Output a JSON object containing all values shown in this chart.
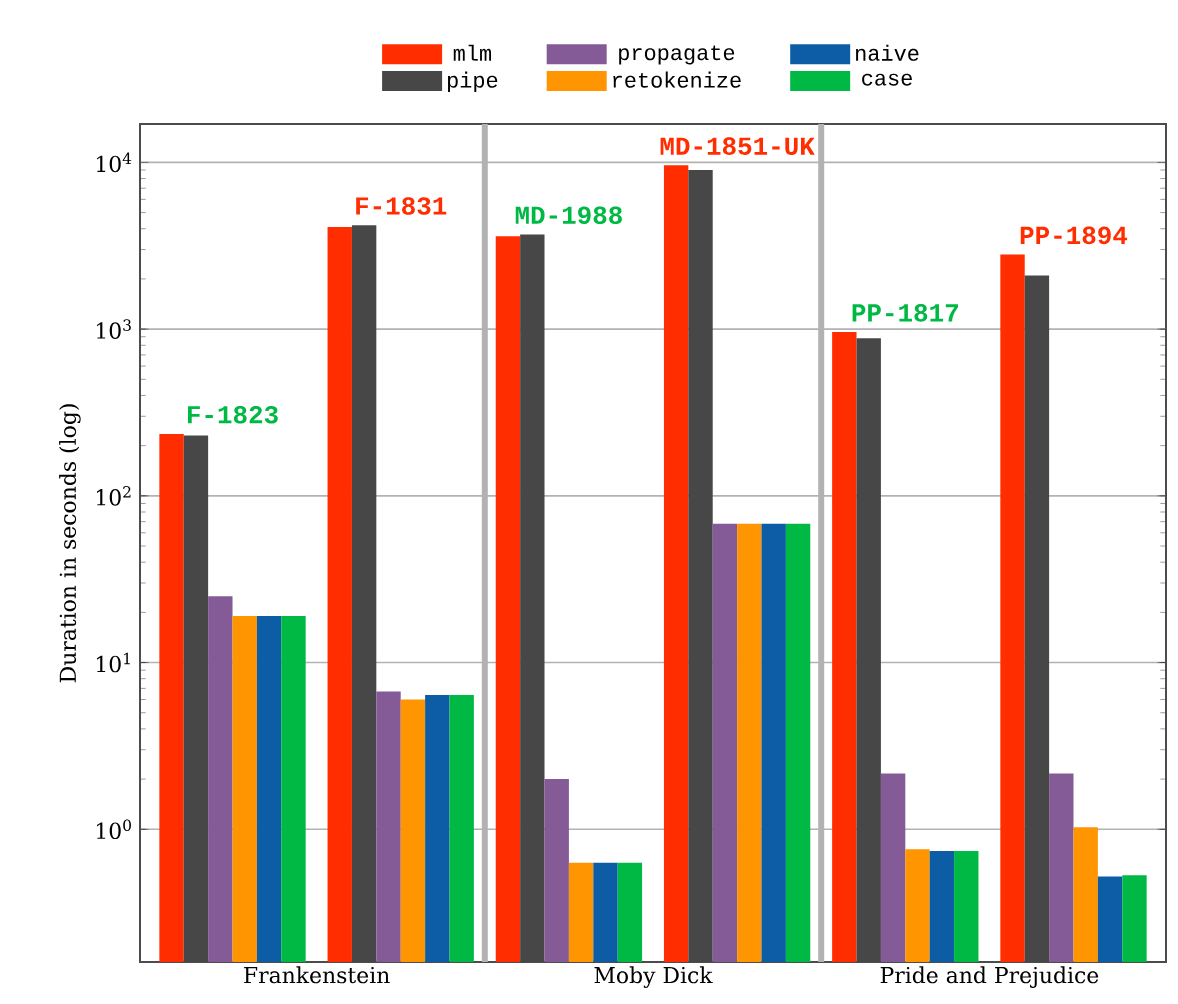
{
  "chart_data": {
    "type": "bar",
    "ylabel": "Duration in seconds (log)",
    "log": "y",
    "grid": "y",
    "legend": "top",
    "categories": [
      "F-1823",
      "F-1831",
      "MD-1988",
      "MD-1851-UK",
      "PP-1817",
      "PP-1894"
    ],
    "ylim": [
      0.16,
      17000
    ],
    "yticks": [
      {
        "value": 1,
        "label": "10$^{0}$"
      },
      {
        "value": 10,
        "label": "10$^{1}$"
      },
      {
        "value": 100,
        "label": "10$^{2}$"
      },
      {
        "value": 1000,
        "label": "10$^{3}$"
      },
      {
        "value": 10000,
        "label": "10$^{4}$"
      }
    ],
    "series": [
      {
        "name": "mlm",
        "color": "#ff2d00",
        "values": [
          235,
          4100,
          3600,
          9600,
          960,
          2800
        ]
      },
      {
        "name": "pipe",
        "color": "#474747",
        "values": [
          230,
          4200,
          3700,
          9000,
          880,
          2100
        ]
      },
      {
        "name": "propagate",
        "color": "#845b97",
        "values": [
          25,
          6.7,
          2.0,
          68,
          2.16,
          2.16
        ]
      },
      {
        "name": "retokenize",
        "color": "#ff9500",
        "values": [
          19,
          6.0,
          0.63,
          68,
          0.76,
          1.03
        ]
      },
      {
        "name": "naive",
        "color": "#0c5da5",
        "values": [
          19,
          6.4,
          0.63,
          68,
          0.74,
          0.52
        ]
      },
      {
        "name": "case",
        "color": "#00b945",
        "values": [
          19,
          6.4,
          0.63,
          68,
          0.74,
          0.53
        ]
      }
    ],
    "annotations": [
      "Frankenstein",
      "Moby Dick",
      "Pride and Prejudice"
    ]
  }
}
